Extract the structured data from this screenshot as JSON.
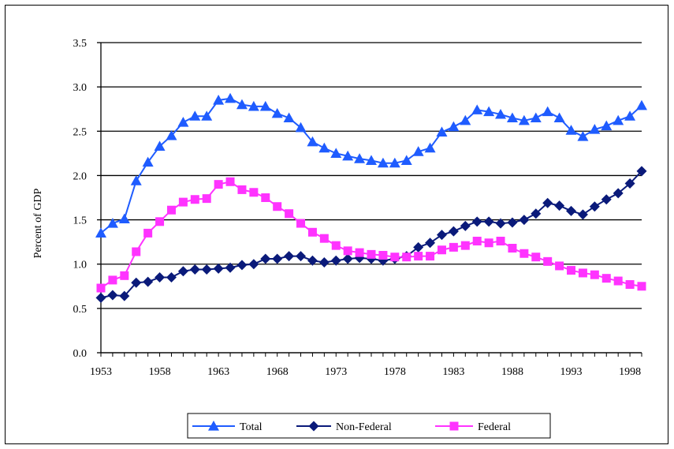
{
  "chart_data": {
    "type": "line",
    "title": "",
    "xlabel": "",
    "ylabel": "Percent of GDP",
    "x": [
      1953,
      1954,
      1955,
      1956,
      1957,
      1958,
      1959,
      1960,
      1961,
      1962,
      1963,
      1964,
      1965,
      1966,
      1967,
      1968,
      1969,
      1970,
      1971,
      1972,
      1973,
      1974,
      1975,
      1976,
      1977,
      1978,
      1979,
      1980,
      1981,
      1982,
      1983,
      1984,
      1985,
      1986,
      1987,
      1988,
      1989,
      1990,
      1991,
      1992,
      1993,
      1994,
      1995,
      1996,
      1997,
      1998,
      1999
    ],
    "xticks": [
      "1953",
      "1958",
      "1963",
      "1968",
      "1973",
      "1978",
      "1983",
      "1988",
      "1993",
      "1998"
    ],
    "yticks": [
      "0.0",
      "0.5",
      "1.0",
      "1.5",
      "2.0",
      "2.5",
      "3.0",
      "3.5"
    ],
    "ylim": [
      0,
      3.5
    ],
    "grid": "horizontal",
    "legend_position": "bottom",
    "series": [
      {
        "name": "Total",
        "color": "#1f5cff",
        "marker": "triangle",
        "values": [
          1.35,
          1.46,
          1.51,
          1.94,
          2.15,
          2.33,
          2.45,
          2.6,
          2.67,
          2.67,
          2.85,
          2.87,
          2.8,
          2.78,
          2.78,
          2.7,
          2.65,
          2.54,
          2.38,
          2.31,
          2.25,
          2.22,
          2.19,
          2.17,
          2.14,
          2.14,
          2.17,
          2.27,
          2.31,
          2.49,
          2.55,
          2.62,
          2.74,
          2.72,
          2.69,
          2.65,
          2.62,
          2.65,
          2.72,
          2.65,
          2.51,
          2.44,
          2.52,
          2.56,
          2.62,
          2.67,
          2.79
        ]
      },
      {
        "name": "Non-Federal",
        "color": "#0a1a7a",
        "marker": "diamond",
        "values": [
          0.62,
          0.65,
          0.64,
          0.79,
          0.8,
          0.85,
          0.85,
          0.92,
          0.94,
          0.94,
          0.95,
          0.96,
          0.99,
          1.0,
          1.06,
          1.06,
          1.09,
          1.09,
          1.04,
          1.02,
          1.04,
          1.06,
          1.07,
          1.06,
          1.04,
          1.06,
          1.09,
          1.19,
          1.24,
          1.33,
          1.37,
          1.43,
          1.48,
          1.48,
          1.46,
          1.47,
          1.5,
          1.57,
          1.69,
          1.66,
          1.6,
          1.56,
          1.65,
          1.73,
          1.8,
          1.91,
          2.05
        ]
      },
      {
        "name": "Federal",
        "color": "#ff33ff",
        "marker": "square",
        "values": [
          0.73,
          0.82,
          0.87,
          1.14,
          1.35,
          1.48,
          1.61,
          1.7,
          1.73,
          1.74,
          1.9,
          1.93,
          1.84,
          1.81,
          1.75,
          1.65,
          1.57,
          1.46,
          1.36,
          1.29,
          1.21,
          1.15,
          1.13,
          1.11,
          1.1,
          1.08,
          1.08,
          1.09,
          1.09,
          1.16,
          1.19,
          1.21,
          1.26,
          1.24,
          1.26,
          1.18,
          1.12,
          1.08,
          1.03,
          0.98,
          0.93,
          0.9,
          0.88,
          0.84,
          0.81,
          0.77,
          0.75
        ]
      }
    ]
  }
}
